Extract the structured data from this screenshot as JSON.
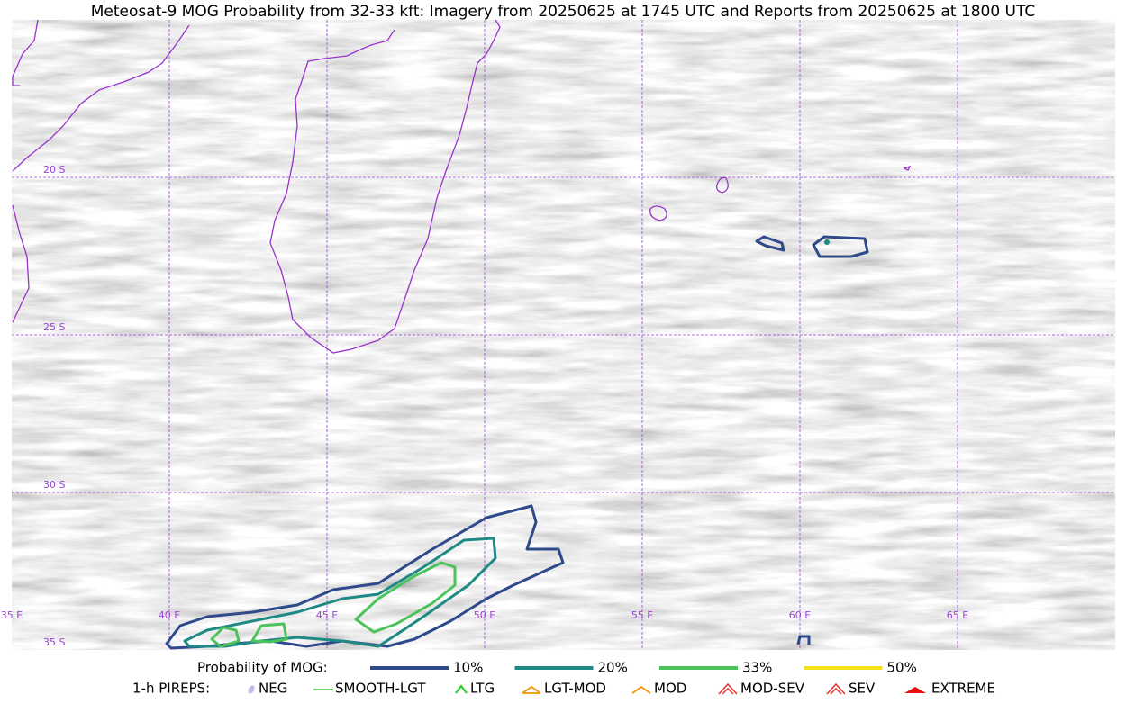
{
  "title": "Meteosat-9 MOG Probability from 32-33 kft: Imagery from 20250625 at 1745 UTC and Reports from 20250625 at 1800 UTC",
  "map": {
    "lon_labels": [
      "35 E",
      "40 E",
      "45 E",
      "50 E",
      "55 E",
      "60 E",
      "65 E"
    ],
    "lat_labels": [
      "20 S",
      "25 S",
      "30 S",
      "35 S"
    ]
  },
  "legend": {
    "probability": {
      "label": "Probability of MOG:",
      "items": [
        {
          "label": "10%",
          "color": "#2e4a8a"
        },
        {
          "label": "20%",
          "color": "#1f8a84"
        },
        {
          "label": "33%",
          "color": "#4cc35a"
        },
        {
          "label": "50%",
          "color": "#f5e01a"
        }
      ]
    },
    "pireps": {
      "label": "1-h PIREPS:",
      "items": [
        {
          "label": "NEG",
          "color": "#c8b8f0"
        },
        {
          "label": "SMOOTH-LGT",
          "color": "#33cc33"
        },
        {
          "label": "LTG",
          "color": "#22cc22"
        },
        {
          "label": "LGT-MOD",
          "color": "#f0a020"
        },
        {
          "label": "MOD",
          "color": "#f0a020"
        },
        {
          "label": "MOD-SEV",
          "color": "#e83030"
        },
        {
          "label": "SEV",
          "color": "#e83030"
        },
        {
          "label": "EXTREME",
          "color": "#e81010"
        }
      ]
    }
  }
}
